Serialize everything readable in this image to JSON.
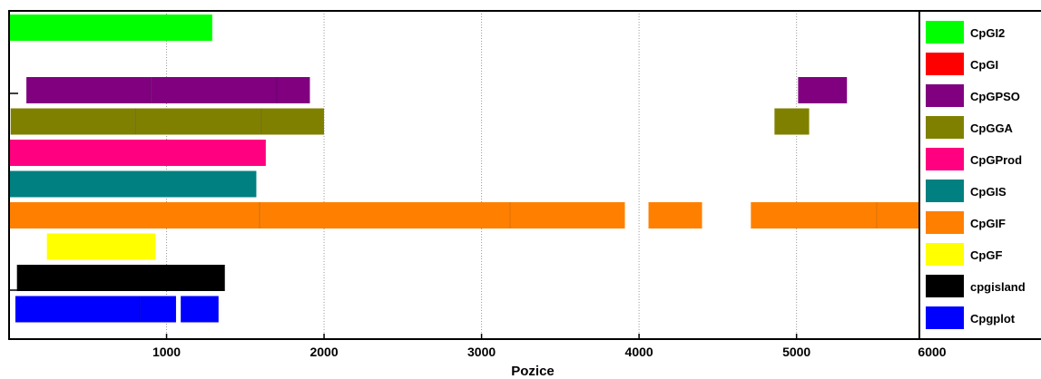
{
  "chart_data": {
    "type": "bar",
    "orientation": "horizontal-ranges",
    "title": "",
    "xlabel": "Pozice",
    "ylabel": "",
    "xlim": [
      0,
      6000
    ],
    "visible_xlim": [
      0,
      5780
    ],
    "xticks": [
      "1000",
      "2000",
      "3000",
      "4000",
      "5000",
      "6000"
    ],
    "grid": "vertical dotted",
    "legend_position": "right",
    "series": [
      {
        "name": "CpGI2",
        "color": "#00ff00",
        "segments": [
          [
            0,
            1290
          ]
        ]
      },
      {
        "name": "CpGI",
        "color": "#ff0000",
        "segments": []
      },
      {
        "name": "CpGPSO",
        "color": "#800080",
        "segments": [
          [
            110,
            900
          ],
          [
            900,
            1700
          ],
          [
            1700,
            1910
          ],
          [
            5010,
            5320
          ]
        ]
      },
      {
        "name": "CpGGA",
        "color": "#808000",
        "segments": [
          [
            10,
            800
          ],
          [
            800,
            1600
          ],
          [
            1600,
            2000
          ],
          [
            4860,
            5080
          ]
        ]
      },
      {
        "name": "CpGProd",
        "color": "#ff0080",
        "segments": [
          [
            0,
            1630
          ]
        ]
      },
      {
        "name": "CpGIS",
        "color": "#008080",
        "segments": [
          [
            0,
            1570
          ]
        ]
      },
      {
        "name": "CpGIF",
        "color": "#ff8000",
        "segments": [
          [
            0,
            1590
          ],
          [
            1590,
            3180
          ],
          [
            3180,
            3910
          ],
          [
            4060,
            4400
          ],
          [
            4710,
            5510
          ],
          [
            5510,
            5780
          ]
        ]
      },
      {
        "name": "CpGF",
        "color": "#ffff00",
        "segments": [
          [
            240,
            930
          ]
        ]
      },
      {
        "name": "cpgisland",
        "color": "#000000",
        "segments": [
          [
            50,
            1370
          ]
        ]
      },
      {
        "name": "Cpgplot",
        "color": "#0000ff",
        "segments": [
          [
            40,
            830
          ],
          [
            830,
            1060
          ],
          [
            1090,
            1330
          ]
        ]
      }
    ]
  }
}
